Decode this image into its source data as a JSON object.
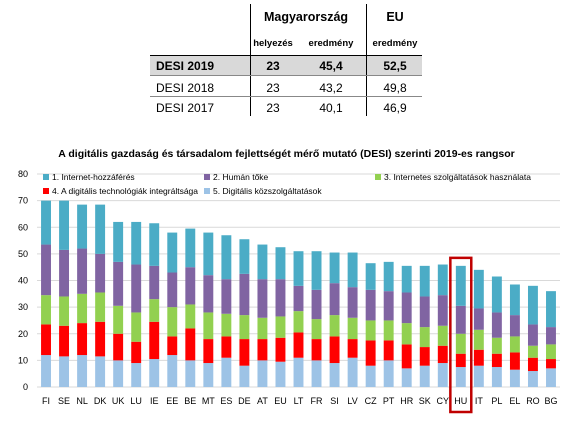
{
  "table": {
    "group_headers": [
      "Magyarország",
      "EU"
    ],
    "sub_headers": [
      "helyezés",
      "eredmény",
      "eredmény"
    ],
    "rows": [
      {
        "label": "DESI 2019",
        "rank": "23",
        "score": "45,4",
        "eu": "52,5"
      },
      {
        "label": "DESI 2018",
        "rank": "23",
        "score": "43,2",
        "eu": "49,8"
      },
      {
        "label": "DESI 2017",
        "rank": "23",
        "score": "40,1",
        "eu": "46,9"
      }
    ]
  },
  "chart_data": {
    "type": "bar",
    "stacked": true,
    "title": "A digitális gazdaság és társadalom fejlettségét mérő mutató (DESI) szerinti 2019-es rangsor",
    "xlabel": "",
    "ylabel": "",
    "ylim": [
      0,
      80
    ],
    "yticks": [
      0,
      10,
      20,
      30,
      40,
      50,
      60,
      70,
      80
    ],
    "grid": true,
    "legend_position": "top",
    "highlighted_category": "HU",
    "categories": [
      "FI",
      "SE",
      "NL",
      "DK",
      "UK",
      "LU",
      "IE",
      "EE",
      "BE",
      "MT",
      "ES",
      "DE",
      "AT",
      "EU",
      "LT",
      "FR",
      "SI",
      "LV",
      "CZ",
      "PT",
      "HR",
      "SK",
      "CY",
      "HU",
      "IT",
      "PL",
      "EL",
      "RO",
      "BG"
    ],
    "series": [
      {
        "name": "5. Digitális közszolgáltatások",
        "color": "#9dc3e6",
        "values": [
          12,
          11.5,
          12,
          11.5,
          10,
          9,
          10.5,
          12,
          10,
          9,
          11,
          8,
          10,
          9.5,
          11,
          10,
          9,
          11,
          8,
          10,
          7,
          8,
          9,
          7.5,
          8,
          7.5,
          6.5,
          6,
          7
        ]
      },
      {
        "name": "4. A digitális technológiák integráltsága",
        "color": "#ff0000",
        "values": [
          11.5,
          11.5,
          12,
          13,
          10,
          8,
          14,
          7,
          12,
          9,
          8,
          10,
          8,
          9,
          9.5,
          8,
          10,
          7,
          9.5,
          7.5,
          9,
          7,
          6.5,
          5,
          6,
          5,
          6.5,
          5,
          3.5
        ]
      },
      {
        "name": "3. Internetes szolgáltatások használata",
        "color": "#92d050",
        "values": [
          11,
          11,
          11,
          11,
          10.5,
          11,
          8.5,
          11,
          9,
          10,
          8.5,
          9,
          8,
          8,
          8,
          7.5,
          8,
          8,
          7.5,
          7.5,
          8,
          7.5,
          7.5,
          7.5,
          7.5,
          6,
          6,
          4.5,
          5.5
        ]
      },
      {
        "name": "2. Humán tőke",
        "color": "#8064a2",
        "values": [
          19,
          17.5,
          17,
          14.5,
          16.5,
          18,
          12.5,
          13,
          14,
          14,
          13,
          15.5,
          14.5,
          14,
          9.5,
          11,
          12,
          11.5,
          11.5,
          11,
          11.5,
          11.5,
          11.5,
          10.5,
          8,
          9.5,
          8,
          8,
          6.5
        ]
      },
      {
        "name": "1. Internet-hozzáférés",
        "color": "#4bacc6",
        "values": [
          16.5,
          18.5,
          16.5,
          18.5,
          15,
          16,
          16,
          15,
          14.5,
          16,
          16.5,
          13,
          13,
          12,
          13,
          14.5,
          11.5,
          13,
          10,
          11,
          10,
          11.5,
          11.5,
          15,
          14.5,
          13.5,
          11.5,
          14.5,
          13.5
        ]
      }
    ]
  }
}
